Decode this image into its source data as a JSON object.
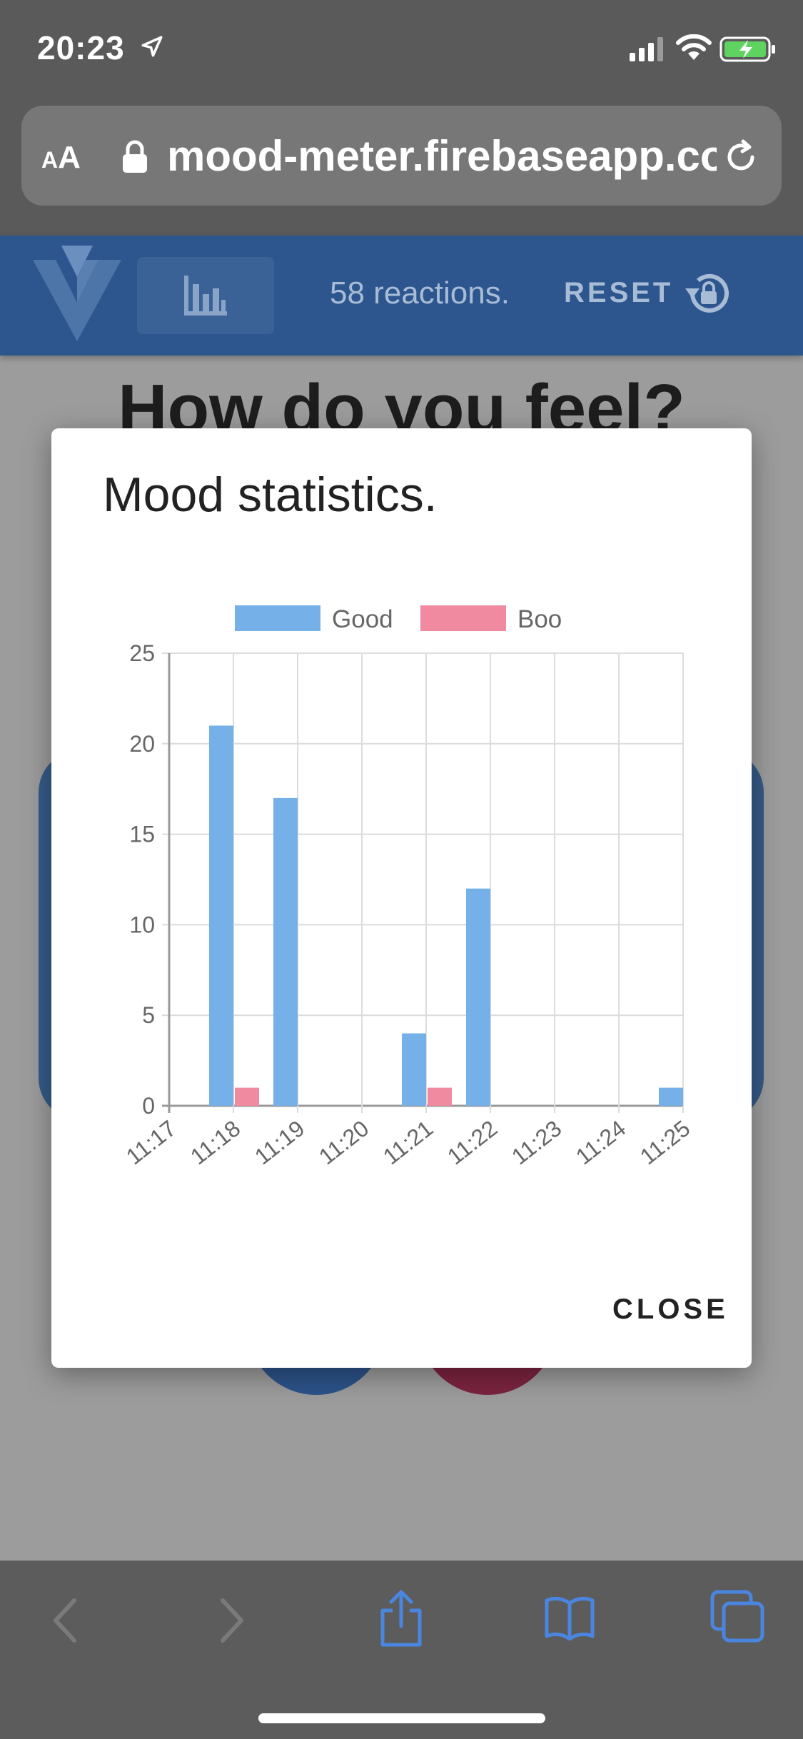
{
  "status_bar": {
    "time": "20:23"
  },
  "browser": {
    "aa_small": "A",
    "aa_large": "A",
    "url": "mood-meter.firebaseapp.com"
  },
  "app_toolbar": {
    "reactions": "58 reactions.",
    "reset_label": "RESET"
  },
  "background": {
    "heading": "How do you feel?"
  },
  "dialog": {
    "title": "Mood statistics.",
    "close_label": "CLOSE"
  },
  "colors": {
    "good": "#75b0e8",
    "boo": "#f08aa0",
    "toolbar": "#2d568f"
  },
  "chart_data": {
    "type": "bar",
    "categories": [
      "11:17",
      "11:18",
      "11:19",
      "11:20",
      "11:21",
      "11:22",
      "11:23",
      "11:24",
      "11:25"
    ],
    "series": [
      {
        "name": "Good",
        "values": [
          21,
          17,
          0,
          4,
          12,
          0,
          0,
          0,
          1
        ]
      },
      {
        "name": "Boo",
        "values": [
          1,
          0,
          0,
          1,
          0,
          0,
          0,
          0,
          0
        ]
      }
    ],
    "yticks": [
      0,
      5,
      10,
      15,
      20,
      25
    ],
    "ylim": [
      0,
      25
    ],
    "grid": true,
    "legend": "top"
  }
}
